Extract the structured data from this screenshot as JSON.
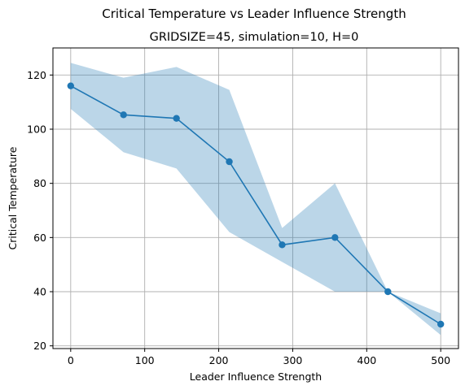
{
  "chart_data": {
    "type": "line",
    "title": "Critical Temperature vs Leader Influence Strength",
    "subtitle": "GRIDSIZE=45, simulation=10, H=0",
    "xlabel": "Leader Influence Strength",
    "ylabel": "Critical Temperature",
    "xlim": [
      -24,
      524
    ],
    "ylim": [
      19,
      130
    ],
    "xticks": [
      0,
      100,
      200,
      300,
      400,
      500
    ],
    "yticks": [
      20,
      40,
      60,
      80,
      100,
      120
    ],
    "grid": true,
    "legend": "none",
    "colors": {
      "line": "#1f77b4",
      "band": "#1f77b4",
      "grid": "#b0b0b0"
    },
    "series": [
      {
        "x": [
          0,
          71.4,
          142.9,
          214.3,
          285.7,
          357.1,
          428.6,
          500
        ],
        "y": [
          116,
          105.3,
          104,
          88,
          57.3,
          60,
          40,
          28
        ],
        "band_upper": [
          124.5,
          119,
          123,
          114.5,
          63.5,
          80,
          40,
          32
        ],
        "band_lower": [
          107.5,
          91.5,
          85.5,
          62,
          51,
          40,
          40,
          24
        ]
      }
    ]
  }
}
